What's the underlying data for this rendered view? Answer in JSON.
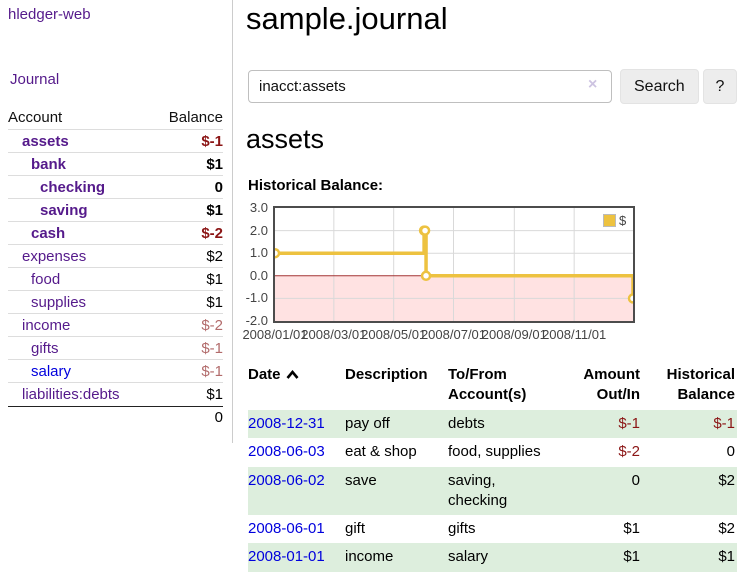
{
  "colors": {
    "link_purple": "#551a8b",
    "link_blue": "#0000dd",
    "negative": "#8b1515",
    "negative_soft": "#b26b6b",
    "row_green": "#ddeedd",
    "chart_line": "#edc240",
    "chart_negative_fill": "#ffe2e2",
    "chart_zero_line": "#a33333",
    "chart_border": "#4c4c4c",
    "chart_grid": "#d9d9d9",
    "button_bg": "#ededed"
  },
  "sidebar": {
    "brand": "hledger-web",
    "nav_journal": "Journal",
    "table_headers": {
      "account": "Account",
      "balance": "Balance"
    },
    "accounts": [
      {
        "name": "assets",
        "depth": 0,
        "bold": true,
        "balance": "$-1",
        "balance_style": "neg-strong",
        "link_style": "visited"
      },
      {
        "name": "bank",
        "depth": 1,
        "bold": true,
        "balance": "$1",
        "balance_style": "plain",
        "link_style": "visited"
      },
      {
        "name": "checking",
        "depth": 2,
        "bold": true,
        "balance": "0",
        "balance_style": "plain",
        "link_style": "visited"
      },
      {
        "name": "saving",
        "depth": 2,
        "bold": true,
        "balance": "$1",
        "balance_style": "plain",
        "link_style": "visited"
      },
      {
        "name": "cash",
        "depth": 1,
        "bold": true,
        "balance": "$-2",
        "balance_style": "neg-strong",
        "link_style": "visited"
      },
      {
        "name": "expenses",
        "depth": 0,
        "bold": false,
        "balance": "$2",
        "balance_style": "plain",
        "link_style": "visited"
      },
      {
        "name": "food",
        "depth": 1,
        "bold": false,
        "balance": "$1",
        "balance_style": "plain",
        "link_style": "visited"
      },
      {
        "name": "supplies",
        "depth": 1,
        "bold": false,
        "balance": "$1",
        "balance_style": "plain",
        "link_style": "visited"
      },
      {
        "name": "income",
        "depth": 0,
        "bold": false,
        "balance": "$-2",
        "balance_style": "neg-soft",
        "link_style": "visited"
      },
      {
        "name": "gifts",
        "depth": 1,
        "bold": false,
        "balance": "$-1",
        "balance_style": "neg-soft",
        "link_style": "visited"
      },
      {
        "name": "salary",
        "depth": 1,
        "bold": false,
        "balance": "$-1",
        "balance_style": "neg-soft",
        "link_style": "unvisited"
      },
      {
        "name": "liabilities:debts",
        "depth": 0,
        "bold": false,
        "balance": "$1",
        "balance_style": "plain",
        "link_style": "visited"
      }
    ],
    "grand_total": "0"
  },
  "main": {
    "title": "sample.journal",
    "search": {
      "value": "inacct:assets",
      "clear_icon": "×",
      "button_label": "Search",
      "help_label": "?"
    },
    "account_heading": "assets",
    "chart_heading": "Historical Balance:"
  },
  "chart_data": {
    "type": "line",
    "title": "Historical Balance",
    "xlabel": "",
    "ylabel": "",
    "grid": true,
    "legend_position": "top-right",
    "xlim": [
      0,
      365
    ],
    "ylim": [
      -2,
      3
    ],
    "yticks": [
      {
        "v": 3,
        "label": "3.0"
      },
      {
        "v": 2,
        "label": "2.0"
      },
      {
        "v": 1,
        "label": "1.0"
      },
      {
        "v": 0,
        "label": "0.0"
      },
      {
        "v": -1,
        "label": "-1.0"
      },
      {
        "v": -2,
        "label": "-2.0"
      }
    ],
    "xticks": [
      {
        "v": 0,
        "label": "2008/01/01"
      },
      {
        "v": 60,
        "label": "2008/03/01"
      },
      {
        "v": 121,
        "label": "2008/05/01"
      },
      {
        "v": 182,
        "label": "2008/07/01"
      },
      {
        "v": 244,
        "label": "2008/09/01"
      },
      {
        "v": 305,
        "label": "2008/11/01"
      }
    ],
    "series": [
      {
        "name": "$",
        "color": "#edc240",
        "steps": true,
        "points": [
          {
            "date": "2008-01-01",
            "x": 0,
            "y": 1
          },
          {
            "date": "2008-06-01",
            "x": 152,
            "y": 2
          },
          {
            "date": "2008-06-02",
            "x": 153,
            "y": 2
          },
          {
            "date": "2008-06-03",
            "x": 154,
            "y": 0
          },
          {
            "date": "2008-12-31",
            "x": 365,
            "y": -1
          }
        ]
      }
    ],
    "negative_region": {
      "below": 0,
      "fill": "#ffe2e2",
      "line_color": "#a33333"
    },
    "legend": {
      "label": "$"
    }
  },
  "register_table": {
    "headers": {
      "date": "Date",
      "description": "Description",
      "accounts": "To/From Account(s)",
      "amount": "Amount Out/In",
      "balance": "Historical Balance"
    },
    "sort": {
      "column": "date",
      "direction": "ascending"
    },
    "rows": [
      {
        "date": "2008-12-31",
        "description": "pay off",
        "accounts": "debts",
        "amount": "$-1",
        "amount_negative": true,
        "balance": "$-1",
        "balance_negative": true,
        "shaded": true
      },
      {
        "date": "2008-06-03",
        "description": "eat & shop",
        "accounts": "food, supplies",
        "amount": "$-2",
        "amount_negative": true,
        "balance": "0",
        "balance_negative": false,
        "shaded": false
      },
      {
        "date": "2008-06-02",
        "description": "save",
        "accounts": "saving, checking",
        "amount": "0",
        "amount_negative": false,
        "balance": "$2",
        "balance_negative": false,
        "shaded": true
      },
      {
        "date": "2008-06-01",
        "description": "gift",
        "accounts": "gifts",
        "amount": "$1",
        "amount_negative": false,
        "balance": "$2",
        "balance_negative": false,
        "shaded": false
      },
      {
        "date": "2008-01-01",
        "description": "income",
        "accounts": "salary",
        "amount": "$1",
        "amount_negative": false,
        "balance": "$1",
        "balance_negative": false,
        "shaded": true
      }
    ]
  }
}
